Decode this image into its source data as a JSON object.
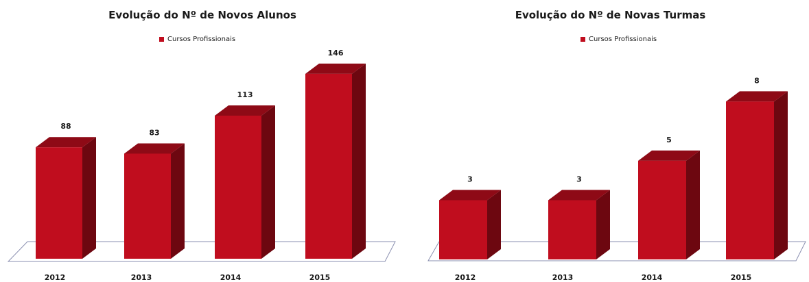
{
  "chart_data": [
    {
      "type": "bar",
      "title": "Evolução do Nº de Novos Alunos",
      "legend": "Cursos Profissionais",
      "legend_position": "top",
      "categories": [
        "2012",
        "2013",
        "2014",
        "2015"
      ],
      "series": [
        {
          "name": "Cursos Profissionais",
          "values": [
            88,
            83,
            113,
            146
          ]
        }
      ],
      "data_labels": [
        "88",
        "83",
        "113",
        "146"
      ],
      "ylim": [
        0,
        160
      ],
      "grid": false,
      "style": "3d-column",
      "colors": {
        "front": "#c00d1e",
        "side": "#6d0710",
        "top": "#8e0a16"
      }
    },
    {
      "type": "bar",
      "title": "Evolução do Nº de Novas Turmas",
      "legend": "Cursos Profissionais",
      "legend_position": "top",
      "categories": [
        "2012",
        "2013",
        "2014",
        "2015"
      ],
      "series": [
        {
          "name": "Cursos Profissionais",
          "values": [
            3,
            3,
            5,
            8
          ]
        }
      ],
      "data_labels": [
        "3",
        "3",
        "5",
        "8"
      ],
      "ylim": [
        0,
        10.3
      ],
      "grid": false,
      "style": "3d-column",
      "colors": {
        "front": "#c00d1e",
        "side": "#6d0710",
        "top": "#8e0a16"
      }
    }
  ]
}
